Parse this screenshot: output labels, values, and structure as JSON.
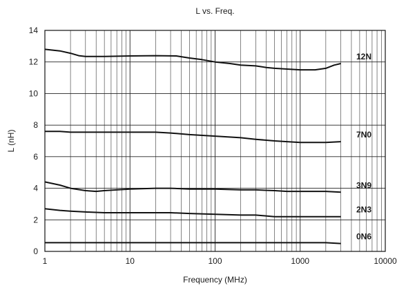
{
  "chart_data": {
    "type": "line",
    "title": "L vs. Freq.",
    "xlabel": "Frequency (MHz)",
    "ylabel": "L (nH)",
    "xscale": "log",
    "xlim": [
      1,
      10000
    ],
    "ylim": [
      0,
      14
    ],
    "xticks": [
      "1",
      "10",
      "100",
      "1000",
      "10000"
    ],
    "yticks": [
      "0",
      "2",
      "4",
      "6",
      "8",
      "10",
      "12",
      "14"
    ],
    "grid": true,
    "series": [
      {
        "name": "12N",
        "x": [
          1,
          1.5,
          2,
          2.5,
          3,
          5,
          10,
          20,
          35,
          50,
          70,
          100,
          150,
          200,
          300,
          400,
          500,
          700,
          1000,
          1500,
          2000,
          2500,
          3000
        ],
        "y": [
          12.8,
          12.7,
          12.55,
          12.4,
          12.35,
          12.35,
          12.38,
          12.4,
          12.38,
          12.25,
          12.15,
          12.0,
          11.9,
          11.8,
          11.75,
          11.65,
          11.6,
          11.55,
          11.5,
          11.5,
          11.6,
          11.8,
          11.9
        ]
      },
      {
        "name": "7N0",
        "x": [
          1,
          1.5,
          2,
          5,
          10,
          20,
          30,
          50,
          100,
          200,
          300,
          500,
          700,
          1000,
          2000,
          3000
        ],
        "y": [
          7.6,
          7.6,
          7.55,
          7.55,
          7.55,
          7.55,
          7.5,
          7.4,
          7.3,
          7.2,
          7.1,
          7.0,
          6.95,
          6.9,
          6.9,
          6.95
        ]
      },
      {
        "name": "3N9",
        "x": [
          1,
          1.5,
          2,
          3,
          4,
          5,
          7,
          10,
          20,
          30,
          50,
          100,
          200,
          300,
          500,
          700,
          1000,
          2000,
          3000
        ],
        "y": [
          4.4,
          4.2,
          4.0,
          3.85,
          3.8,
          3.85,
          3.9,
          3.95,
          4.0,
          4.0,
          3.95,
          3.95,
          3.9,
          3.9,
          3.85,
          3.8,
          3.8,
          3.8,
          3.75
        ]
      },
      {
        "name": "2N3",
        "x": [
          1,
          1.5,
          2,
          3,
          5,
          10,
          20,
          30,
          50,
          100,
          200,
          300,
          500,
          1000,
          2000,
          3000
        ],
        "y": [
          2.7,
          2.6,
          2.55,
          2.5,
          2.45,
          2.45,
          2.45,
          2.45,
          2.4,
          2.35,
          2.3,
          2.3,
          2.2,
          2.2,
          2.2,
          2.2
        ]
      },
      {
        "name": "0N6",
        "x": [
          1,
          10,
          100,
          1000,
          2000,
          3000
        ],
        "y": [
          0.55,
          0.55,
          0.55,
          0.55,
          0.55,
          0.5
        ]
      }
    ]
  }
}
